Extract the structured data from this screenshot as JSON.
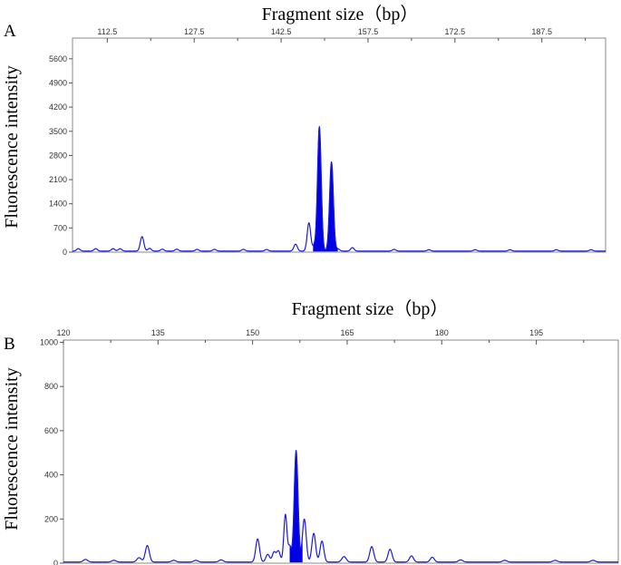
{
  "colors": {
    "trace": "#1a1adc",
    "fill": "#0000e6"
  },
  "chart_data": [
    {
      "type": "line",
      "panel_label": "A",
      "xlabel": "Fragment size（bp）",
      "ylabel": "Fluorescence intensity",
      "xlim": [
        106.5,
        198.5
      ],
      "ylim": [
        0,
        6200
      ],
      "x_ticks": [
        "112.5",
        "127.5",
        "142.5",
        "157.5",
        "172.5",
        "187.5"
      ],
      "x_tick_values": [
        112.5,
        127.5,
        142.5,
        157.5,
        172.5,
        187.5
      ],
      "y_ticks": [
        "0",
        "700",
        "1400",
        "2100",
        "2800",
        "3500",
        "4200",
        "4900",
        "5600"
      ],
      "y_tick_values": [
        0,
        700,
        1400,
        2100,
        2800,
        3500,
        4200,
        4900,
        5600
      ],
      "baseline": 30,
      "peaks": [
        {
          "x": 107.5,
          "y": 70,
          "w": 0.3
        },
        {
          "x": 110.5,
          "y": 70,
          "w": 0.3
        },
        {
          "x": 113.5,
          "y": 70,
          "w": 0.3
        },
        {
          "x": 114.7,
          "y": 70,
          "w": 0.3
        },
        {
          "x": 118.5,
          "y": 420,
          "w": 0.3
        },
        {
          "x": 119.8,
          "y": 80,
          "w": 0.3
        },
        {
          "x": 122.0,
          "y": 55,
          "w": 0.3
        },
        {
          "x": 124.5,
          "y": 55,
          "w": 0.3
        },
        {
          "x": 128.0,
          "y": 50,
          "w": 0.3
        },
        {
          "x": 131.0,
          "y": 50,
          "w": 0.3
        },
        {
          "x": 136.0,
          "y": 50,
          "w": 0.3
        },
        {
          "x": 140.0,
          "y": 45,
          "w": 0.3
        },
        {
          "x": 145.0,
          "y": 200,
          "w": 0.3
        },
        {
          "x": 147.3,
          "y": 820,
          "w": 0.3
        },
        {
          "x": 148.2,
          "y": 150,
          "w": 0.25
        },
        {
          "x": 150.8,
          "y": 80,
          "w": 0.3
        },
        {
          "x": 152.3,
          "y": 65,
          "w": 0.3
        },
        {
          "x": 154.8,
          "y": 100,
          "w": 0.3
        },
        {
          "x": 162.0,
          "y": 50,
          "w": 0.3
        },
        {
          "x": 168.0,
          "y": 40,
          "w": 0.3
        },
        {
          "x": 176.0,
          "y": 40,
          "w": 0.3
        },
        {
          "x": 182.0,
          "y": 40,
          "w": 0.3
        },
        {
          "x": 190.0,
          "y": 40,
          "w": 0.3
        },
        {
          "x": 196.0,
          "y": 40,
          "w": 0.3
        }
      ],
      "filled_peaks": [
        {
          "x": 149.1,
          "y": 3600,
          "w": 0.32
        },
        {
          "x": 151.2,
          "y": 2550,
          "w": 0.32
        }
      ]
    },
    {
      "type": "line",
      "panel_label": "B",
      "xlabel": "Fragment size（bp）",
      "ylabel": "Fluorescence intensity",
      "xlim": [
        120,
        208
      ],
      "ylim": [
        0,
        1010
      ],
      "x_ticks": [
        "120",
        "135",
        "150",
        "165",
        "180",
        "195"
      ],
      "x_tick_values": [
        120,
        135,
        150,
        165,
        180,
        195
      ],
      "y_ticks": [
        "0",
        "200",
        "400",
        "600",
        "800",
        "1000"
      ],
      "y_tick_values": [
        0,
        200,
        400,
        600,
        800,
        1000
      ],
      "baseline": 5,
      "peaks": [
        {
          "x": 123.5,
          "y": 12,
          "w": 0.35
        },
        {
          "x": 128.0,
          "y": 8,
          "w": 0.35
        },
        {
          "x": 132.0,
          "y": 20,
          "w": 0.35
        },
        {
          "x": 133.3,
          "y": 75,
          "w": 0.32
        },
        {
          "x": 137.5,
          "y": 8,
          "w": 0.35
        },
        {
          "x": 141.0,
          "y": 8,
          "w": 0.35
        },
        {
          "x": 145.0,
          "y": 10,
          "w": 0.35
        },
        {
          "x": 150.8,
          "y": 105,
          "w": 0.3
        },
        {
          "x": 152.4,
          "y": 35,
          "w": 0.3
        },
        {
          "x": 153.4,
          "y": 45,
          "w": 0.28
        },
        {
          "x": 154.1,
          "y": 50,
          "w": 0.28
        },
        {
          "x": 155.2,
          "y": 215,
          "w": 0.25
        },
        {
          "x": 155.9,
          "y": 70,
          "w": 0.25
        },
        {
          "x": 158.2,
          "y": 195,
          "w": 0.3
        },
        {
          "x": 159.7,
          "y": 130,
          "w": 0.3
        },
        {
          "x": 161.0,
          "y": 95,
          "w": 0.3
        },
        {
          "x": 164.5,
          "y": 25,
          "w": 0.35
        },
        {
          "x": 168.9,
          "y": 70,
          "w": 0.32
        },
        {
          "x": 171.8,
          "y": 58,
          "w": 0.32
        },
        {
          "x": 175.2,
          "y": 28,
          "w": 0.32
        },
        {
          "x": 178.5,
          "y": 22,
          "w": 0.32
        },
        {
          "x": 183.0,
          "y": 10,
          "w": 0.35
        },
        {
          "x": 190.0,
          "y": 8,
          "w": 0.35
        },
        {
          "x": 198.0,
          "y": 8,
          "w": 0.35
        },
        {
          "x": 204.0,
          "y": 8,
          "w": 0.35
        }
      ],
      "filled_peaks": [
        {
          "x": 156.9,
          "y": 505,
          "w": 0.3
        }
      ]
    }
  ]
}
